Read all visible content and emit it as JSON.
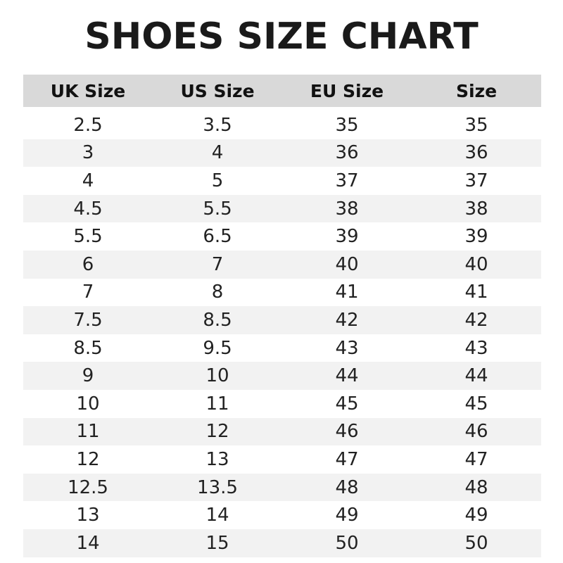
{
  "title": "SHOES SIZE CHART",
  "headers": [
    "UK Size",
    "US Size",
    "EU Size",
    "Size"
  ],
  "rows": [
    [
      "2.5",
      "3.5",
      "35",
      "35"
    ],
    [
      "3",
      "4",
      "36",
      "36"
    ],
    [
      "4",
      "5",
      "37",
      "37"
    ],
    [
      "4.5",
      "5.5",
      "38",
      "38"
    ],
    [
      "5.5",
      "6.5",
      "39",
      "39"
    ],
    [
      "6",
      "7",
      "40",
      "40"
    ],
    [
      "7",
      "8",
      "41",
      "41"
    ],
    [
      "7.5",
      "8.5",
      "42",
      "42"
    ],
    [
      "8.5",
      "9.5",
      "43",
      "43"
    ],
    [
      "9",
      "10",
      "44",
      "44"
    ],
    [
      "10",
      "11",
      "45",
      "45"
    ],
    [
      "11",
      "12",
      "46",
      "46"
    ],
    [
      "12",
      "13",
      "47",
      "47"
    ],
    [
      "12.5",
      "13.5",
      "48",
      "48"
    ],
    [
      "13",
      "14",
      "49",
      "49"
    ],
    [
      "14",
      "15",
      "50",
      "50"
    ]
  ],
  "colors": {
    "header_bg": "#d9d9d9",
    "stripe_bg": "#f2f2f2"
  }
}
